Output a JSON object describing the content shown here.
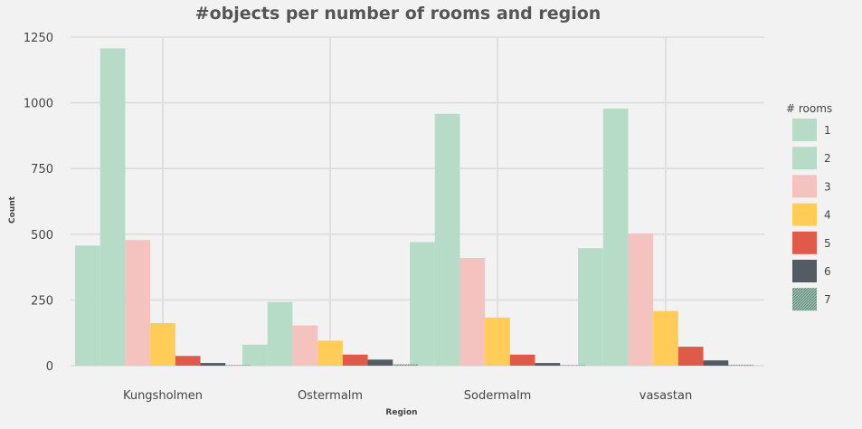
{
  "chart_data": {
    "type": "bar",
    "title": "#objects per number of rooms and region",
    "xlabel": "Region",
    "ylabel": "Count",
    "categories": [
      "Kungsholmen",
      "Ostermalm",
      "Sodermalm",
      "vasastan"
    ],
    "ylim": [
      0,
      1300
    ],
    "yticks": [
      "0",
      "250",
      "500",
      "750",
      "1000",
      "1250"
    ],
    "ytick_values": [
      0,
      250,
      500,
      750,
      1000,
      1250
    ],
    "grid": true,
    "legend": {
      "title": "# rooms",
      "placement": "right"
    },
    "series": [
      {
        "name": "1",
        "color": "#b6dcc8",
        "values": [
          457,
          80,
          470,
          447
        ]
      },
      {
        "name": "2",
        "color": "#b6dcc8",
        "values": [
          1207,
          242,
          958,
          978
        ]
      },
      {
        "name": "3",
        "color": "#f4c3c0",
        "values": [
          478,
          153,
          410,
          503
        ]
      },
      {
        "name": "4",
        "color": "#ffcd57",
        "values": [
          162,
          95,
          183,
          208
        ]
      },
      {
        "name": "5",
        "color": "#df5a49",
        "values": [
          37,
          42,
          42,
          72
        ]
      },
      {
        "name": "6",
        "color": "#535c63",
        "values": [
          10,
          23,
          10,
          20
        ]
      },
      {
        "name": "7",
        "color": "#7aa394",
        "values": [
          2,
          5,
          2,
          3
        ]
      }
    ]
  }
}
